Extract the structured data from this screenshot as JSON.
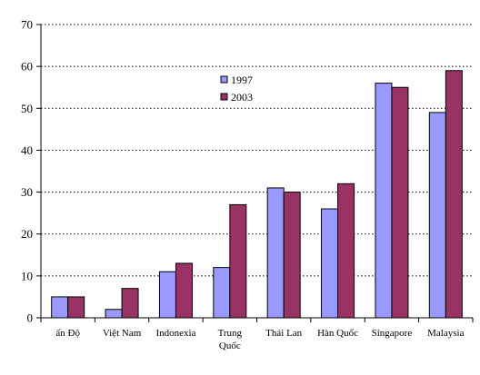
{
  "chart_data": {
    "type": "bar",
    "title": "",
    "xlabel": "",
    "ylabel": "",
    "categories": [
      [
        "ấn Độ"
      ],
      [
        "Việt Nam"
      ],
      [
        "Indonexia"
      ],
      [
        "Trung",
        "Quốc"
      ],
      [
        "Thái Lan"
      ],
      [
        "Hàn Quốc"
      ],
      [
        "Singapore"
      ],
      [
        "Malaysia"
      ]
    ],
    "series": [
      {
        "name": "1997",
        "color": "#9999ff",
        "values": [
          5,
          2,
          11,
          12,
          31,
          26,
          56,
          49
        ]
      },
      {
        "name": "2003",
        "color": "#993366",
        "values": [
          5,
          7,
          13,
          27,
          30,
          32,
          55,
          59
        ]
      }
    ],
    "ylim": [
      0,
      70
    ],
    "yticks": [
      0,
      10,
      20,
      30,
      40,
      50,
      60,
      70
    ],
    "grid": "horizontal-dotted",
    "legend_position": "top-center"
  }
}
